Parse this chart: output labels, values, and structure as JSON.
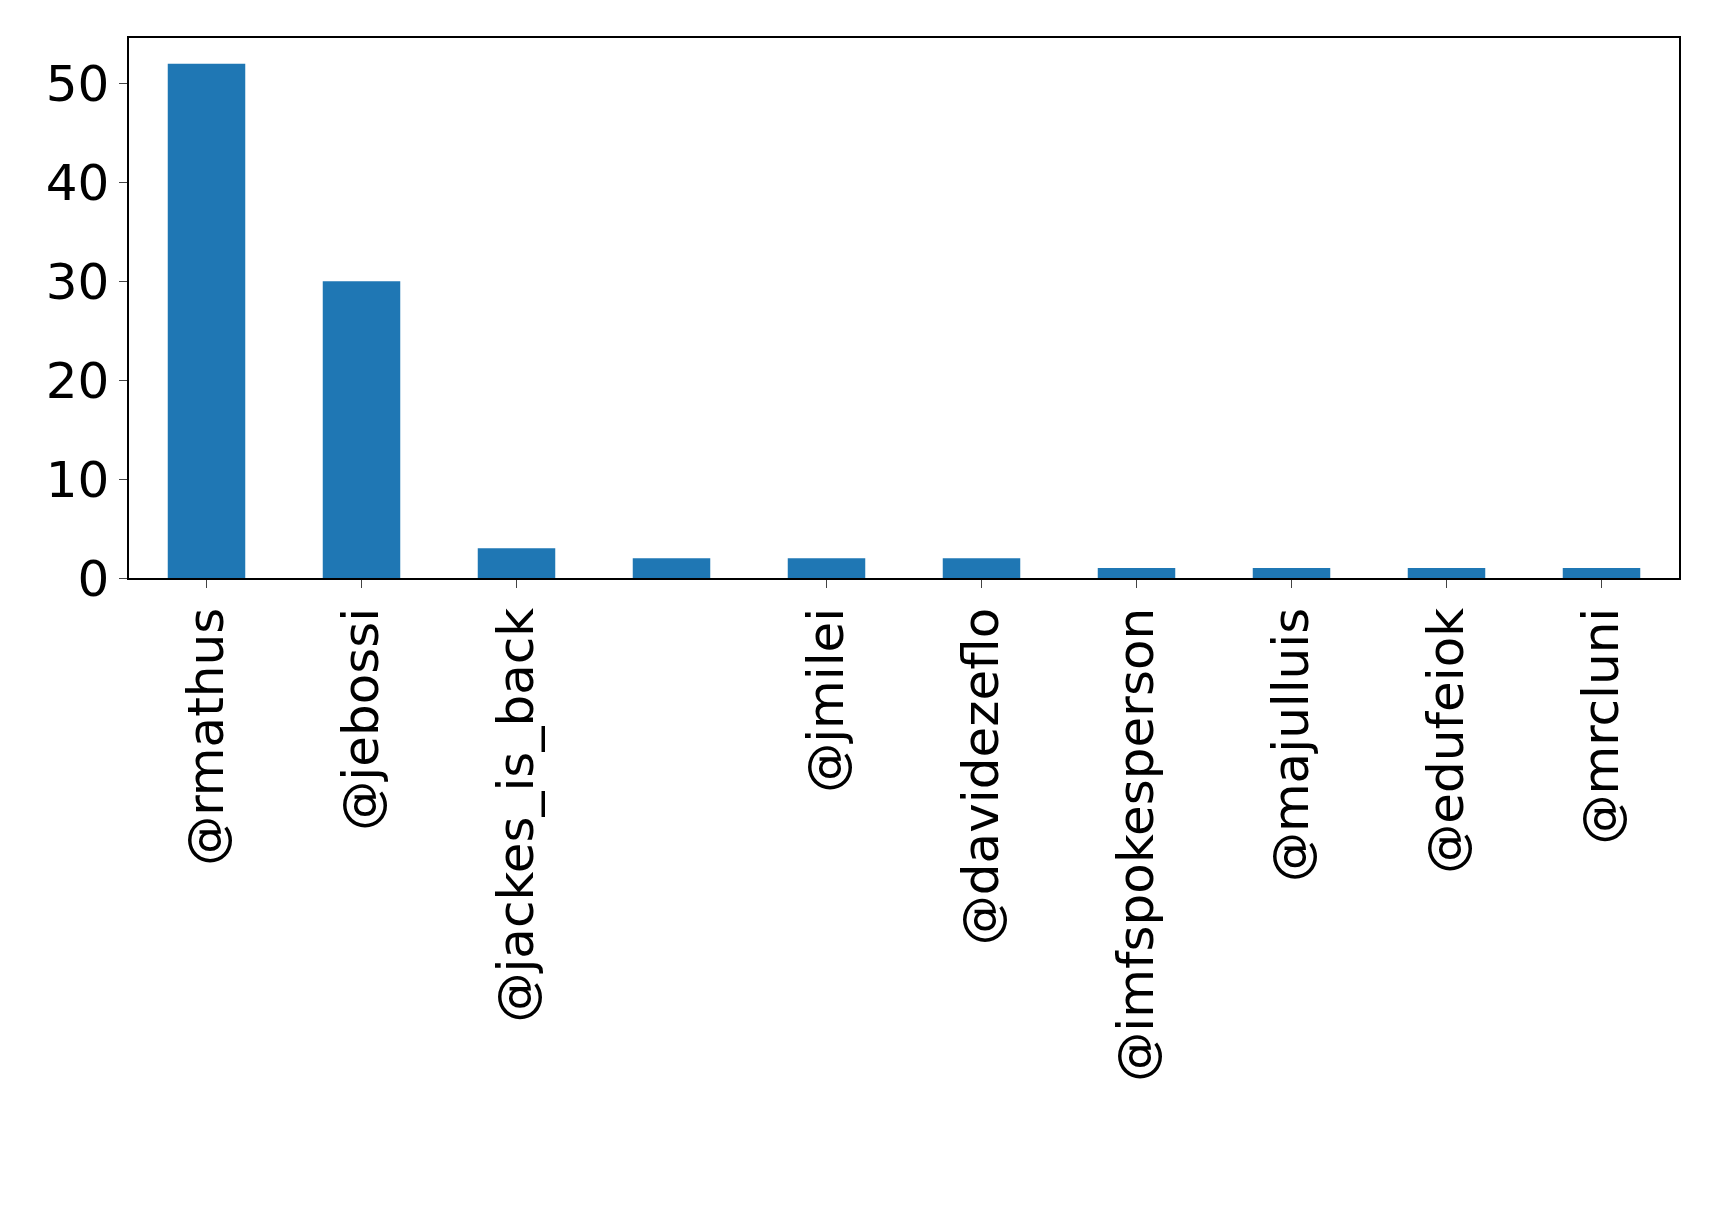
{
  "chart_data": {
    "type": "bar",
    "categories": [
      "@rmathus",
      "@jebossi",
      "@jackes_is_back",
      null,
      "@jmilei",
      "@davidezeflo",
      "@imfspokesperson",
      "@majulluis",
      "@edufeiok",
      "@mrcluni"
    ],
    "values": [
      52,
      30,
      3,
      2,
      2,
      2,
      1,
      1,
      1,
      1
    ],
    "color": "#1f77b4",
    "ylim": [
      0,
      54.6
    ],
    "yticks": [
      0,
      10,
      20,
      30,
      40,
      50
    ],
    "grid": false,
    "legend": false
  }
}
